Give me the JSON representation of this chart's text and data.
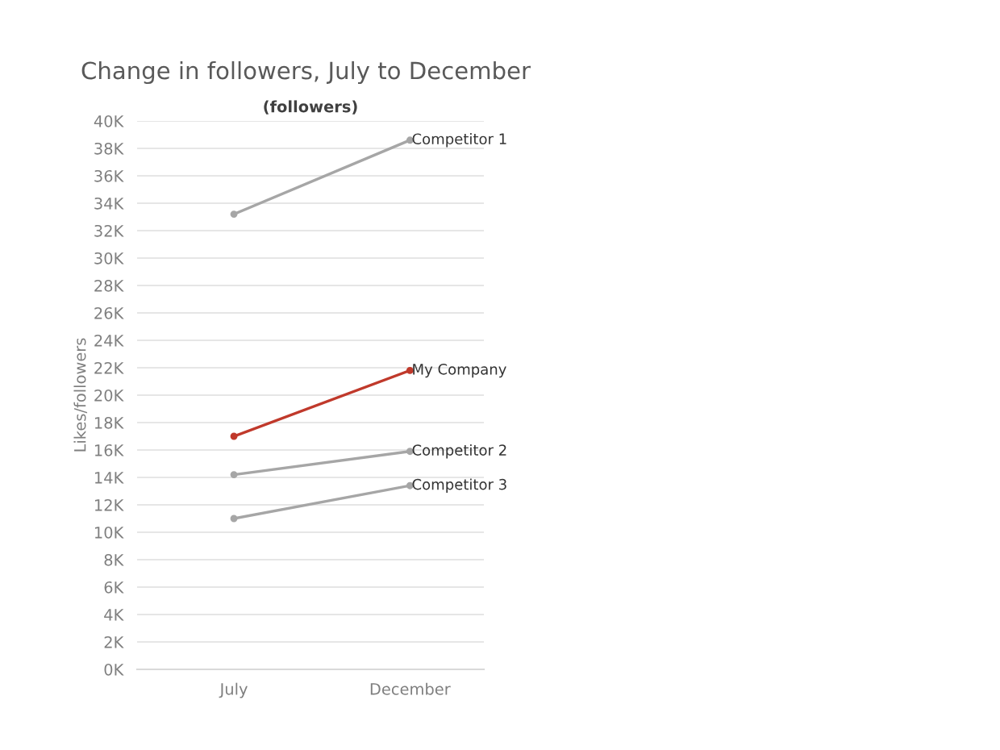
{
  "chart_data": {
    "type": "line",
    "title": "Change in followers, July to December",
    "subtitle": "(followers)",
    "ylabel": "Likes/followers",
    "categories": [
      "July",
      "December"
    ],
    "series": [
      {
        "name": "Competitor 1",
        "color": "#a6a6a6",
        "values": [
          33200,
          38600
        ]
      },
      {
        "name": "My Company",
        "color": "#c0392b",
        "values": [
          17000,
          21800
        ]
      },
      {
        "name": "Competitor 2",
        "color": "#a6a6a6",
        "values": [
          14200,
          15900
        ]
      },
      {
        "name": "Competitor 3",
        "color": "#a6a6a6",
        "values": [
          11000,
          13400
        ]
      }
    ],
    "ylim": [
      0,
      40000
    ],
    "yticks": [
      {
        "value": 0,
        "label": "0K"
      },
      {
        "value": 2000,
        "label": "2K"
      },
      {
        "value": 4000,
        "label": "4K"
      },
      {
        "value": 6000,
        "label": "6K"
      },
      {
        "value": 8000,
        "label": "8K"
      },
      {
        "value": 10000,
        "label": "10K"
      },
      {
        "value": 12000,
        "label": "12K"
      },
      {
        "value": 14000,
        "label": "14K"
      },
      {
        "value": 16000,
        "label": "16K"
      },
      {
        "value": 18000,
        "label": "18K"
      },
      {
        "value": 20000,
        "label": "20K"
      },
      {
        "value": 22000,
        "label": "22K"
      },
      {
        "value": 24000,
        "label": "24K"
      },
      {
        "value": 26000,
        "label": "26K"
      },
      {
        "value": 28000,
        "label": "28K"
      },
      {
        "value": 30000,
        "label": "30K"
      },
      {
        "value": 32000,
        "label": "32K"
      },
      {
        "value": 34000,
        "label": "34K"
      },
      {
        "value": 36000,
        "label": "36K"
      },
      {
        "value": 38000,
        "label": "38K"
      },
      {
        "value": 40000,
        "label": "40K"
      }
    ],
    "grid": "y",
    "marker": "circle",
    "line_style": "solid"
  }
}
